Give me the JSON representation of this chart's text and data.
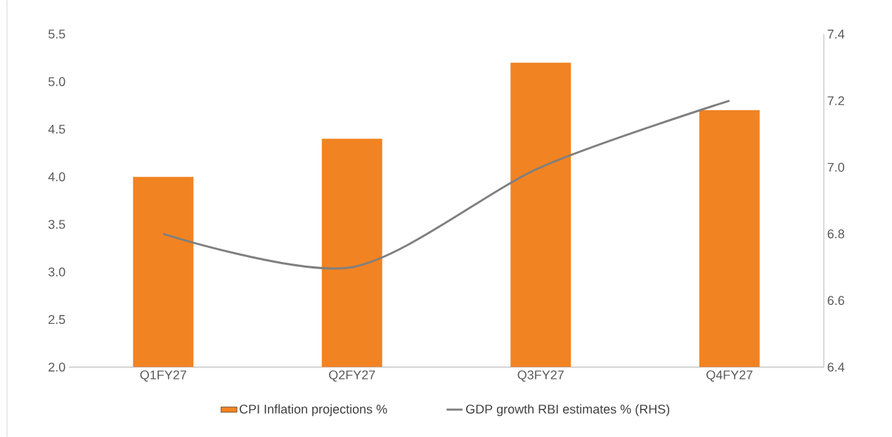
{
  "chart_data": {
    "type": "bar",
    "categories": [
      "Q1FY27",
      "Q2FY27",
      "Q3FY27",
      "Q4FY27"
    ],
    "series": [
      {
        "name": "CPI Inflation projections %",
        "color": "#f28322",
        "values": [
          4.0,
          4.4,
          5.2,
          4.7
        ]
      },
      {
        "name": "GDP growth RBI estimates % (RHS)",
        "color": "#7f7f7f",
        "type": "line",
        "axis": "y2",
        "values": [
          6.8,
          6.7,
          7.0,
          7.2
        ]
      }
    ],
    "ylim": [
      2.0,
      5.5
    ],
    "yticks": [
      {
        "value": 2,
        "label": "2.0"
      },
      2.5,
      {
        "value": 3,
        "label": "3.0"
      },
      3.5,
      {
        "value": 4,
        "label": "4.0"
      },
      4.5,
      {
        "value": 5,
        "label": "5.0"
      },
      5.5
    ],
    "y2lim": [
      6.4,
      7.4
    ],
    "y2ticks": [
      6.4,
      6.6,
      6.8,
      {
        "value": 7,
        "label": "7.0"
      },
      7.2,
      7.4
    ],
    "legend": "bottom"
  }
}
